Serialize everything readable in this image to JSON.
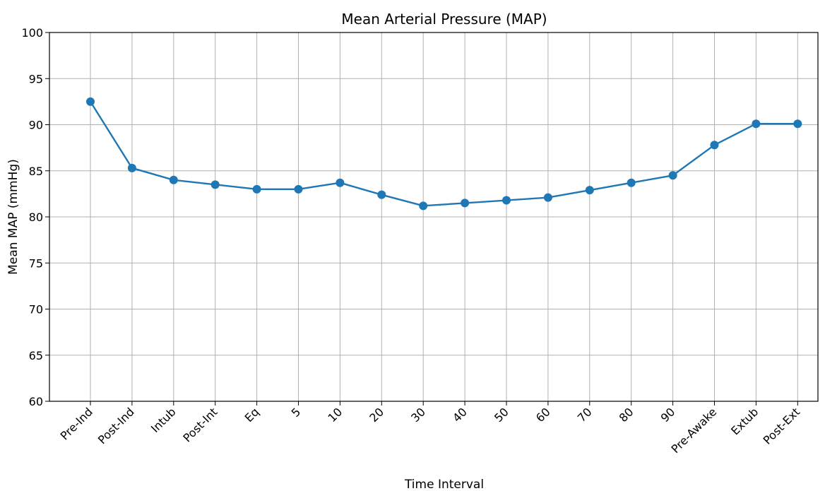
{
  "chart_data": {
    "type": "line",
    "title": "Mean Arterial Pressure (MAP)",
    "xlabel": "Time Interval",
    "ylabel": "Mean MAP (mmHg)",
    "categories": [
      "Pre-Ind",
      "Post-Ind",
      "Intub",
      "Post-Int",
      "Eq",
      "5",
      "10",
      "20",
      "30",
      "40",
      "50",
      "60",
      "70",
      "80",
      "90",
      "Pre-Awake",
      "Extub",
      "Post-Ext"
    ],
    "series": [
      {
        "values": [
          92.5,
          85.3,
          84.0,
          83.5,
          83.0,
          83.0,
          83.7,
          82.4,
          81.2,
          81.5,
          81.8,
          82.1,
          82.9,
          83.7,
          84.5,
          87.8,
          90.1,
          90.1
        ]
      }
    ],
    "ylim": [
      60,
      100
    ],
    "yticks": [
      60,
      65,
      70,
      75,
      80,
      85,
      90,
      95,
      100
    ],
    "grid": true,
    "line_color": "#1f77b4"
  }
}
